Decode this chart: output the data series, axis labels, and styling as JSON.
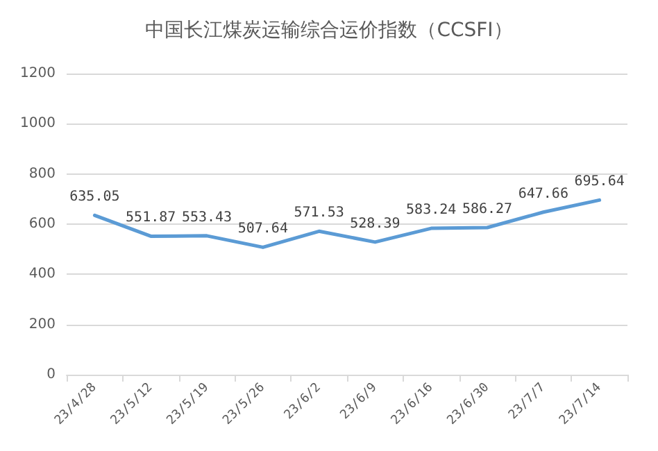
{
  "chart_data": {
    "type": "line",
    "title": "中国长江煤炭运输综合运价指数（CCSFI）",
    "categories": [
      "23/4/28",
      "23/5/12",
      "23/5/19",
      "23/5/26",
      "23/6/2",
      "23/6/9",
      "23/6/16",
      "23/6/30",
      "23/7/7",
      "23/7/14"
    ],
    "series": [
      {
        "color": "#5b9bd5",
        "values": [
          635.05,
          551.87,
          553.43,
          507.64,
          571.53,
          528.39,
          583.24,
          586.27,
          647.66,
          695.64
        ]
      }
    ],
    "ylim": [
      0,
      1200
    ],
    "yticks": [
      0,
      200,
      400,
      600,
      800,
      1000,
      1200
    ],
    "grid": "y",
    "data_labels": true,
    "marker": "none"
  }
}
